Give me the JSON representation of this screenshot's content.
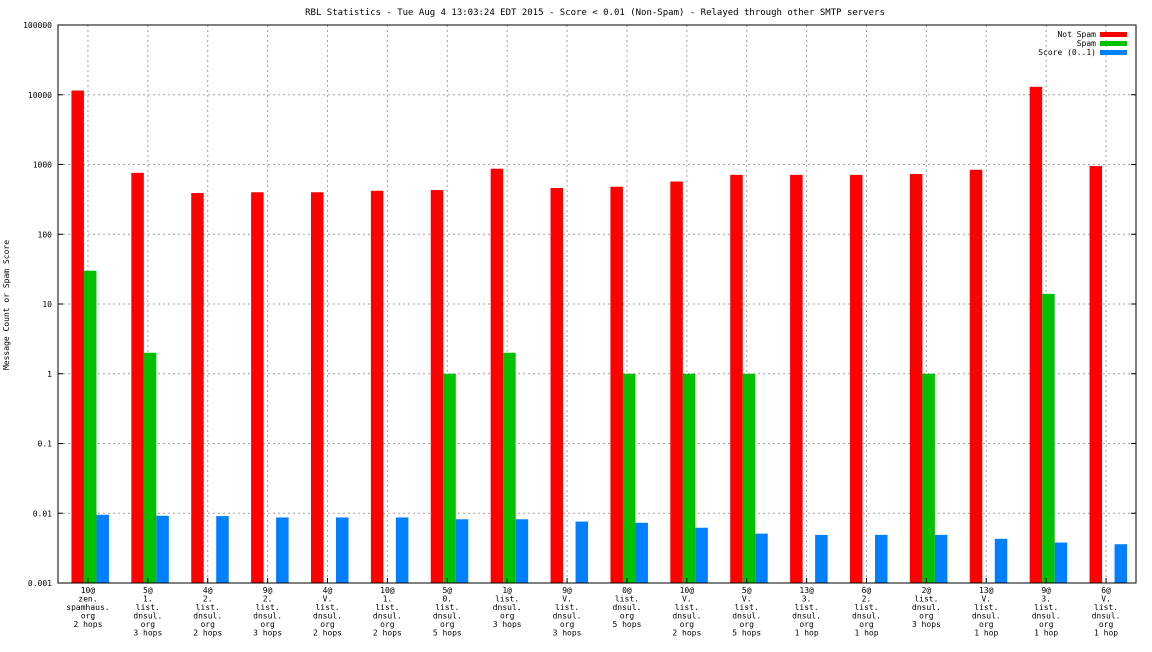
{
  "chart_data": {
    "type": "bar",
    "title": "RBL Statistics - Tue Aug  4 13:03:24 EDT 2015 - Score < 0.01 (Non-Spam) - Relayed through other SMTP servers",
    "xlabel": "",
    "ylabel": "Message Count or Spam Score",
    "y_scale": "log",
    "ylim": [
      0.001,
      100000
    ],
    "y_ticks": [
      "0.001",
      "0.01",
      "0.1",
      "1",
      "10",
      "100",
      "1000",
      "10000",
      "100000"
    ],
    "grid": true,
    "legend_position": "top-right",
    "categories": [
      [
        "10@",
        "zen.",
        "spamhaus.",
        "org",
        "2 hops"
      ],
      [
        "5@",
        "1.",
        "list.",
        "dnsul.",
        "org",
        "3 hops"
      ],
      [
        "4@",
        "2.",
        "list.",
        "dnsul.",
        "org",
        "2 hops"
      ],
      [
        "9@",
        "2.",
        "list.",
        "dnsul.",
        "org",
        "3 hops"
      ],
      [
        "4@",
        "V.",
        "list.",
        "dnsul.",
        "org",
        "2 hops"
      ],
      [
        "10@",
        "1.",
        "list.",
        "dnsul.",
        "org",
        "2 hops"
      ],
      [
        "5@",
        "0.",
        "list.",
        "dnsul.",
        "org",
        "5 hops"
      ],
      [
        "1@",
        "list.",
        "dnsul.",
        "org",
        "3 hops"
      ],
      [
        "9@",
        "V.",
        "list.",
        "dnsul.",
        "org",
        "3 hops"
      ],
      [
        "0@",
        "list.",
        "dnsul.",
        "org",
        "5 hops"
      ],
      [
        "10@",
        "V.",
        "list.",
        "dnsul.",
        "org",
        "2 hops"
      ],
      [
        "5@",
        "V.",
        "list.",
        "dnsul.",
        "org",
        "5 hops"
      ],
      [
        "13@",
        "3.",
        "list.",
        "dnsul.",
        "org",
        "1 hop"
      ],
      [
        "6@",
        "2.",
        "list.",
        "dnsul.",
        "org",
        "1 hop"
      ],
      [
        "2@",
        "list.",
        "dnsul.",
        "org",
        "3 hops"
      ],
      [
        "13@",
        "V.",
        "list.",
        "dnsul.",
        "org",
        "1 hop"
      ],
      [
        "9@",
        "3.",
        "list.",
        "dnsul.",
        "org",
        "1 hop"
      ],
      [
        "6@",
        "V.",
        "list.",
        "dnsul.",
        "org",
        "1 hop"
      ]
    ],
    "series": [
      {
        "name": "Not Spam",
        "color": "#ff0000",
        "values": [
          11500,
          760,
          390,
          400,
          400,
          420,
          430,
          870,
          460,
          480,
          570,
          710,
          710,
          710,
          730,
          840,
          13000,
          950
        ]
      },
      {
        "name": "Spam",
        "color": "#00c000",
        "values": [
          30,
          2,
          null,
          null,
          null,
          null,
          1,
          2,
          null,
          1,
          1,
          1,
          null,
          null,
          1,
          null,
          14,
          null
        ]
      },
      {
        "name": "Score (0..1)",
        "color": "#0080ff",
        "values": [
          0.0095,
          0.0092,
          0.0091,
          0.0087,
          0.0087,
          0.0087,
          0.0082,
          0.0082,
          0.0076,
          0.0073,
          0.0062,
          0.0051,
          0.0049,
          0.0049,
          0.0049,
          0.0043,
          0.0038,
          0.0036
        ]
      }
    ]
  }
}
